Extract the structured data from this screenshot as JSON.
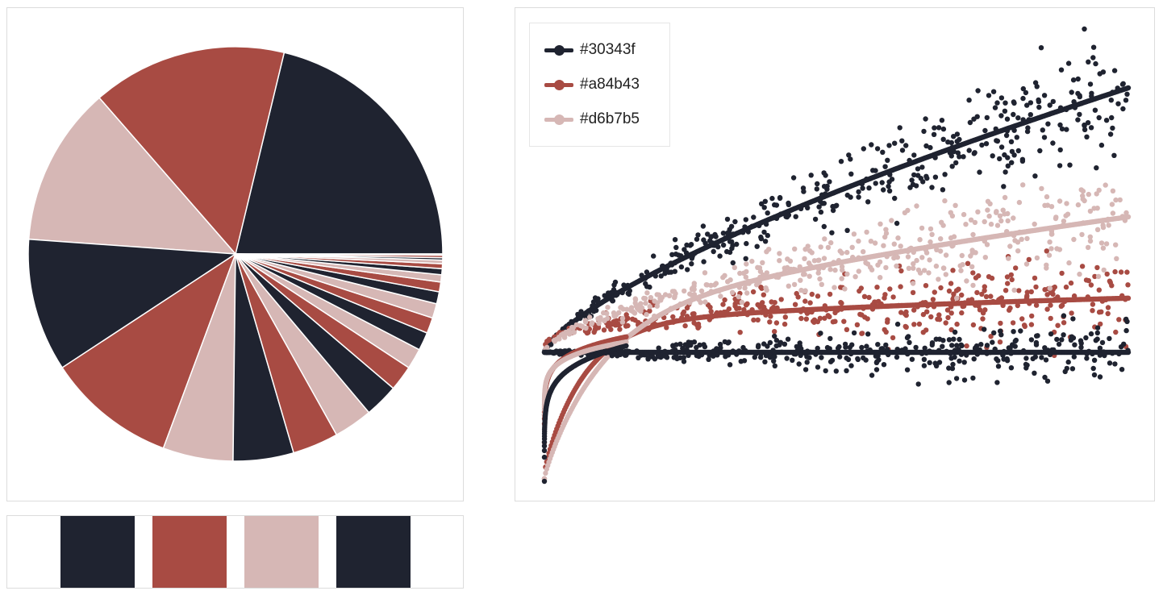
{
  "palette": [
    "#1f2330",
    "#a84b43",
    "#d6b7b5",
    "#1f2330"
  ],
  "chart_data": [
    {
      "type": "pie",
      "title": "",
      "colors": [
        "#1f2330",
        "#a84b43",
        "#d6b7b5"
      ],
      "values": [
        22.5,
        16.1,
        13.2,
        11.0,
        10.7,
        5.8,
        5.0,
        3.8,
        3.2,
        2.8,
        2.1,
        1.7,
        1.5,
        1.3,
        1.2,
        1.0,
        0.8,
        0.6,
        0.5,
        0.4,
        0.3,
        0.2,
        0.2,
        0.1
      ]
    },
    {
      "type": "scatter",
      "title": "",
      "xlabel": "",
      "ylabel": "",
      "xlim": [
        0,
        1
      ],
      "ylim": [
        -1.0,
        2.5
      ],
      "legend": {
        "position": "top-left",
        "entries": [
          {
            "label": "#30343f",
            "color": "#30343f"
          },
          {
            "label": "#a84b43",
            "color": "#a84b43"
          },
          {
            "label": "#d6b7b5",
            "color": "#d6b7b5"
          }
        ]
      },
      "series": [
        {
          "name": "#30343f",
          "color": "#1f2330",
          "trend": "x^0.7 * 2.2",
          "spread": "widening",
          "n_points": 1000
        },
        {
          "name": "#a84b43",
          "color": "#a84b43",
          "trend": "0.8*x^0.35 - 0.4",
          "spread": "widening",
          "n_points": 1000
        },
        {
          "name": "#d6b7b5",
          "color": "#d6b7b5",
          "trend": "1.5*x^0.6 - 0.3",
          "spread": "widening",
          "n_points": 1000
        },
        {
          "name": "#30343f",
          "color": "#1f2330",
          "trend": "0",
          "spread": "widening",
          "n_points": 1000
        }
      ]
    }
  ]
}
